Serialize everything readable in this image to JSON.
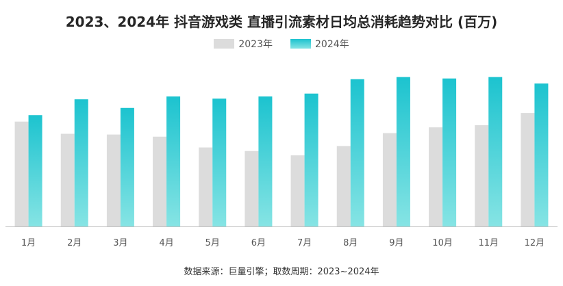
{
  "title": "2023、2024年 抖音游戏类 直播引流素材日均总消耗趋势对比 (百万)",
  "source": "数据来源：巨量引擎；取数周期：2023~2024年",
  "colors": {
    "series_2023": "#dcdcdc",
    "series_2024_top": "#1cc3cf",
    "series_2024_bottom": "#86e4e4",
    "axis": "#bdbdbd"
  },
  "chart_data": {
    "type": "bar",
    "title": "2023、2024年 抖音游戏类 直播引流素材日均总消耗趋势对比 (百万)",
    "categories": [
      "1月",
      "2月",
      "3月",
      "4月",
      "5月",
      "6月",
      "7月",
      "8月",
      "9月",
      "10月",
      "11月",
      "12月"
    ],
    "series": [
      {
        "name": "2023年",
        "values": [
          146,
          129,
          128,
          125,
          110,
          105,
          99,
          112,
          130,
          138,
          141,
          158
        ]
      },
      {
        "name": "2024年",
        "values": [
          155,
          177,
          165,
          181,
          178,
          181,
          185,
          205,
          208,
          206,
          208,
          199
        ]
      }
    ],
    "ylim": [
      0,
      240
    ],
    "y_axis_visible": false,
    "grid": false,
    "legend_position": "top-center"
  }
}
